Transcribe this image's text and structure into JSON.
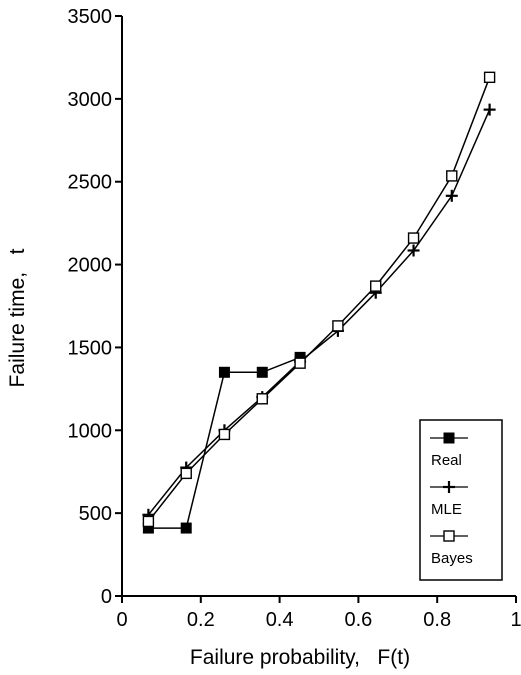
{
  "chart_data": {
    "type": "line",
    "title": "",
    "xlabel": "Failure probability,   F(t)",
    "ylabel": "Failure time,   t",
    "xlim": [
      0,
      1
    ],
    "ylim": [
      0,
      3500
    ],
    "x_ticks": [
      {
        "value": 0,
        "label": "0"
      },
      {
        "value": 0.2,
        "label": "0.2"
      },
      {
        "value": 0.4,
        "label": "0.4"
      },
      {
        "value": 0.6,
        "label": "0.6"
      },
      {
        "value": 0.8,
        "label": "0.8"
      },
      {
        "value": 1,
        "label": "1"
      }
    ],
    "y_ticks": [
      {
        "value": 0,
        "label": "0"
      },
      {
        "value": 500,
        "label": "500"
      },
      {
        "value": 1000,
        "label": "1000"
      },
      {
        "value": 1500,
        "label": "1500"
      },
      {
        "value": 2000,
        "label": "2000"
      },
      {
        "value": 2500,
        "label": "2500"
      },
      {
        "value": 3000,
        "label": "3000"
      },
      {
        "value": 3500,
        "label": "3500"
      }
    ],
    "grid": false,
    "legend_position": "bottom-right",
    "series": [
      {
        "name": "Real",
        "marker": "filled-square",
        "x": [
          0.067,
          0.163,
          0.26,
          0.356,
          0.452
        ],
        "y": [
          410,
          410,
          1350,
          1350,
          1440
        ]
      },
      {
        "name": "MLE",
        "marker": "plus",
        "x": [
          0.067,
          0.163,
          0.26,
          0.356,
          0.452,
          0.548,
          0.644,
          0.74,
          0.837,
          0.933
        ],
        "y": [
          490,
          775,
          1000,
          1200,
          1415,
          1600,
          1830,
          2085,
          2415,
          2935
        ]
      },
      {
        "name": "Bayes",
        "marker": "open-square",
        "x": [
          0.067,
          0.163,
          0.26,
          0.356,
          0.452,
          0.548,
          0.644,
          0.74,
          0.837,
          0.933
        ],
        "y": [
          450,
          740,
          975,
          1190,
          1405,
          1630,
          1870,
          2160,
          2535,
          3130
        ]
      }
    ],
    "colors": {
      "line": "#000000",
      "background": "#ffffff"
    }
  }
}
